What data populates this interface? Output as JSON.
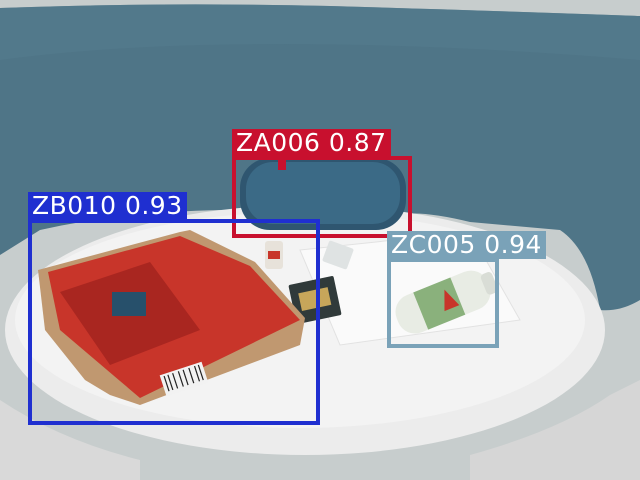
{
  "detections": [
    {
      "label": "ZA006",
      "score": "0.87",
      "color": "#c8102e"
    },
    {
      "label": "ZB010",
      "score": "0.93",
      "color": "#1f2fd0"
    },
    {
      "label": "ZC005",
      "score": "0.94",
      "color": "#7aa2b8"
    }
  ],
  "colors": {
    "wall": "#c9cfcf",
    "panel": "#4f7587",
    "table": "#eeeeee",
    "speaker": "#3b6a86",
    "package": "#c8352a",
    "bottle": "#e8ece4"
  }
}
